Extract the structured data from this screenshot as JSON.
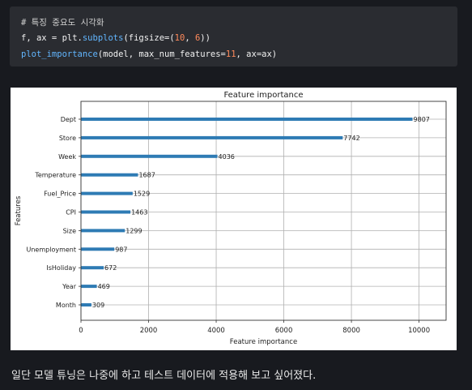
{
  "code": {
    "lines": [
      [
        {
          "t": "# 특징 중요도 시각화",
          "c": "comment"
        }
      ],
      [
        {
          "t": "f, ax = plt.",
          "c": "plain"
        },
        {
          "t": "subplots",
          "c": "fn"
        },
        {
          "t": "(figsize=(",
          "c": "plain"
        },
        {
          "t": "10",
          "c": "num"
        },
        {
          "t": ", ",
          "c": "plain"
        },
        {
          "t": "6",
          "c": "num"
        },
        {
          "t": "))",
          "c": "plain"
        }
      ],
      [
        {
          "t": "plot_importance",
          "c": "fn"
        },
        {
          "t": "(model, max_num_features=",
          "c": "plain"
        },
        {
          "t": "11",
          "c": "num"
        },
        {
          "t": ", ax=ax)",
          "c": "plain"
        }
      ]
    ]
  },
  "colors": {
    "bar": "#2e7bb4",
    "grid": "#b0b0b0",
    "text": "#222222"
  },
  "chart_data": {
    "type": "bar",
    "orientation": "horizontal",
    "title": "Feature importance",
    "xlabel": "Feature importance",
    "ylabel": "Features",
    "grid": true,
    "xlim": [
      0,
      10800
    ],
    "xticks": [
      0,
      2000,
      4000,
      6000,
      8000,
      10000
    ],
    "categories": [
      "Dept",
      "Store",
      "Week",
      "Temperature",
      "Fuel_Price",
      "CPI",
      "Size",
      "Unemployment",
      "IsHoliday",
      "Year",
      "Month"
    ],
    "values": [
      9807,
      7742,
      4036,
      1687,
      1529,
      1463,
      1299,
      987,
      672,
      469,
      309
    ]
  },
  "caption": "일단 모델 튜닝은 나중에 하고 테스트 데이터에 적용해 보고 싶어졌다."
}
